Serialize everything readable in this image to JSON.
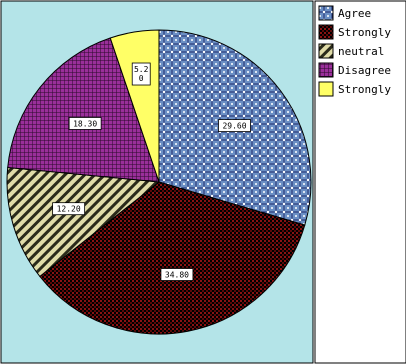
{
  "chart_data": {
    "type": "pie",
    "slices": [
      {
        "label": "Agree",
        "value": 29.6,
        "display": "29.60",
        "color": "#6b8fc4",
        "pattern": "cross-dots"
      },
      {
        "label": "Strongly",
        "value": 34.8,
        "display": "34.80",
        "color": "#7a1010",
        "pattern": "dark-dots"
      },
      {
        "label": "neutral",
        "value": 12.2,
        "display": "12.20",
        "color": "#d6d39a",
        "pattern": "diagonal"
      },
      {
        "label": "Disagree",
        "value": 18.3,
        "display": "18.30",
        "color": "#7c1f7c",
        "pattern": "grid"
      },
      {
        "label": "Strongly",
        "value": 5.2,
        "display": "5.20",
        "color": "#ffff66",
        "pattern": "solid"
      }
    ],
    "start_angle_deg": 0,
    "direction": "clockwise",
    "legend_position": "top-right",
    "plot_background": "#b4e4e8"
  }
}
